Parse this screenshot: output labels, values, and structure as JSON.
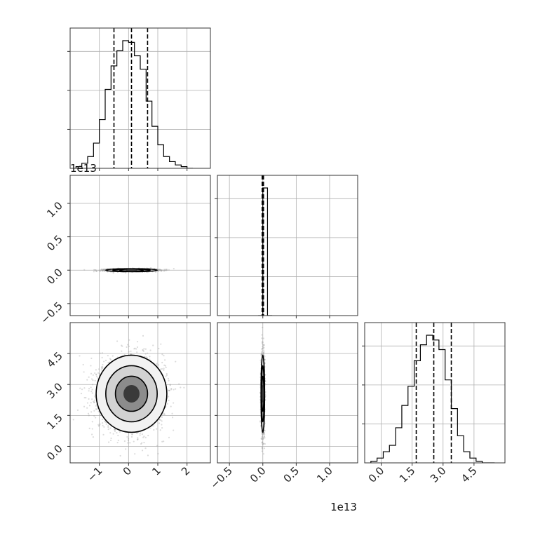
{
  "chart_data": {
    "type": "corner",
    "offset_labels": {
      "param2": "1e13",
      "param3_x": "1e13"
    },
    "params": [
      {
        "id": "p1",
        "range": [
          -2.0,
          2.8
        ],
        "ticks": [
          {
            "v": -1,
            "label": "−1"
          },
          {
            "v": 0,
            "label": "0"
          },
          {
            "v": 1,
            "label": "1"
          },
          {
            "v": 2,
            "label": "2"
          }
        ],
        "quantiles": [
          -0.5,
          0.1,
          0.65
        ]
      },
      {
        "id": "p2",
        "range": [
          -0.68,
          1.42
        ],
        "ticks": [
          {
            "v": -0.5,
            "label": "−0.5"
          },
          {
            "v": 0.0,
            "label": "0.0"
          },
          {
            "v": 0.5,
            "label": "0.5"
          },
          {
            "v": 1.0,
            "label": "1.0"
          }
        ],
        "quantiles": [
          -0.01,
          0.0,
          0.01
        ]
      },
      {
        "id": "p3",
        "range": [
          -0.8,
          6.0
        ],
        "ticks": [
          {
            "v": 0.0,
            "label": "0.0"
          },
          {
            "v": 1.5,
            "label": "1.5"
          },
          {
            "v": 3.0,
            "label": "3.0"
          },
          {
            "v": 4.5,
            "label": "4.5"
          }
        ],
        "quantiles": [
          1.7,
          2.55,
          3.4
        ]
      }
    ],
    "histograms": [
      {
        "param": "p1",
        "bin_start": -1.8,
        "bin_width": 0.2,
        "counts": [
          1,
          3,
          7,
          15,
          29,
          47,
          61,
          70,
          76,
          75,
          67,
          59,
          40,
          25,
          14,
          7,
          4,
          2,
          1,
          0
        ]
      },
      {
        "param": "p2",
        "bin_start": -0.07,
        "bin_width": 0.07,
        "counts": [
          0,
          5000,
          0
        ]
      },
      {
        "param": "p3",
        "bin_start": -0.5,
        "bin_width": 0.3,
        "counts": [
          1,
          3,
          7,
          11,
          22,
          36,
          48,
          64,
          74,
          80,
          77,
          71,
          52,
          34,
          17,
          7,
          3,
          1,
          0,
          0
        ]
      }
    ],
    "scatter_panels": [
      {
        "x": "p1",
        "y": "p2",
        "center": [
          0.1,
          0.0
        ],
        "spread": [
          0.4,
          0.01
        ]
      },
      {
        "x": "p1",
        "y": "p3",
        "center": [
          0.1,
          2.55
        ],
        "spread": [
          0.55,
          0.85
        ]
      },
      {
        "x": "p2",
        "y": "p3",
        "center": [
          0.0,
          2.55
        ],
        "spread": [
          0.012,
          0.85
        ]
      }
    ],
    "grid": true
  }
}
